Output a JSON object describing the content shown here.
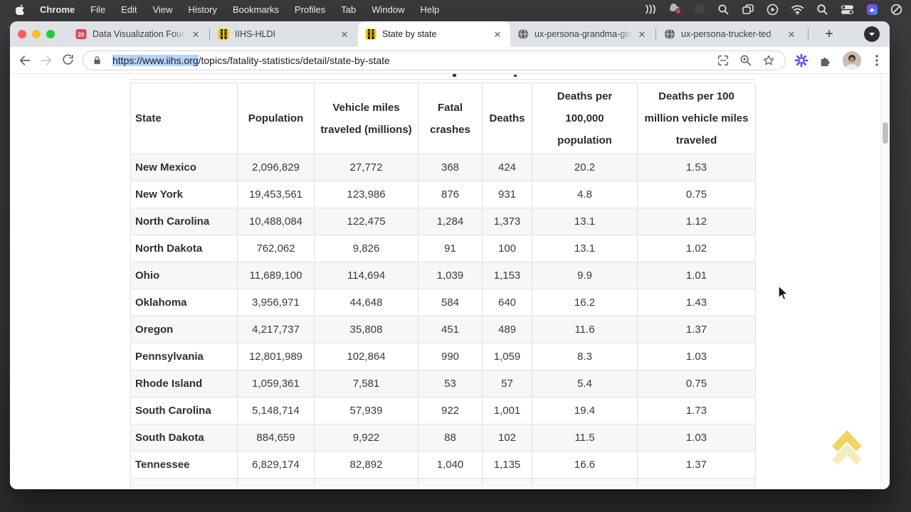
{
  "menu_bar": {
    "app_name": "Chrome",
    "items": [
      "File",
      "Edit",
      "View",
      "History",
      "Bookmarks",
      "Profiles",
      "Tab",
      "Window",
      "Help"
    ],
    "status_icons": [
      "rewind-waves-icon",
      "notification-red-dot-icon",
      "dimmed-app-icon",
      "magnifier-app-icon",
      "window-stack-icon",
      "play-circle-icon",
      "wifi-icon",
      "spotlight-search-icon",
      "control-center-icon",
      "colorful-app-icon",
      "focus-mode-icon"
    ]
  },
  "tabs": [
    {
      "label": "Data Visualization Founda",
      "favicon": "red-20-badge",
      "badge_text": "20",
      "active": false
    },
    {
      "label": "IIHS-HLDI",
      "favicon": "iihs-logo",
      "active": false
    },
    {
      "label": "State by state",
      "favicon": "iihs-logo",
      "active": true
    },
    {
      "label": "ux-persona-grandma-gin",
      "favicon": "globe",
      "active": false
    },
    {
      "label": "ux-persona-trucker-ted",
      "favicon": "globe",
      "active": false
    }
  ],
  "toolbar": {
    "new_tab_label": "+",
    "url_selected": "https://www.iihs.org",
    "url_rest": "/topics/fatality-statistics/detail/state-by-state"
  },
  "colors": {
    "selection_blue": "#b3d4fc",
    "row_stripe_gray": "#f7f7f7",
    "iihs_yellow": "#f6c700",
    "favicon_red": "#d94857",
    "back_to_top_yellow": "#eecb45",
    "traffic_red": "#ff5f57",
    "traffic_yellow": "#febc2e",
    "traffic_green": "#28c840"
  },
  "page": {
    "table": {
      "headers": [
        "State",
        "Population",
        "Vehicle miles traveled (millions)",
        "Fatal crashes",
        "Deaths",
        "Deaths per 100,000 population",
        "Deaths per 100 million vehicle miles traveled"
      ],
      "rows": [
        [
          "New Mexico",
          "2,096,829",
          "27,772",
          "368",
          "424",
          "20.2",
          "1.53"
        ],
        [
          "New York",
          "19,453,561",
          "123,986",
          "876",
          "931",
          "4.8",
          "0.75"
        ],
        [
          "North Carolina",
          "10,488,084",
          "122,475",
          "1,284",
          "1,373",
          "13.1",
          "1.12"
        ],
        [
          "North Dakota",
          "762,062",
          "9,826",
          "91",
          "100",
          "13.1",
          "1.02"
        ],
        [
          "Ohio",
          "11,689,100",
          "114,694",
          "1,039",
          "1,153",
          "9.9",
          "1.01"
        ],
        [
          "Oklahoma",
          "3,956,971",
          "44,648",
          "584",
          "640",
          "16.2",
          "1.43"
        ],
        [
          "Oregon",
          "4,217,737",
          "35,808",
          "451",
          "489",
          "11.6",
          "1.37"
        ],
        [
          "Pennsylvania",
          "12,801,989",
          "102,864",
          "990",
          "1,059",
          "8.3",
          "1.03"
        ],
        [
          "Rhode Island",
          "1,059,361",
          "7,581",
          "53",
          "57",
          "5.4",
          "0.75"
        ],
        [
          "South Carolina",
          "5,148,714",
          "57,939",
          "922",
          "1,001",
          "19.4",
          "1.73"
        ],
        [
          "South Dakota",
          "884,659",
          "9,922",
          "88",
          "102",
          "11.5",
          "1.03"
        ],
        [
          "Tennessee",
          "6,829,174",
          "82,892",
          "1,040",
          "1,135",
          "16.6",
          "1.37"
        ]
      ]
    }
  }
}
